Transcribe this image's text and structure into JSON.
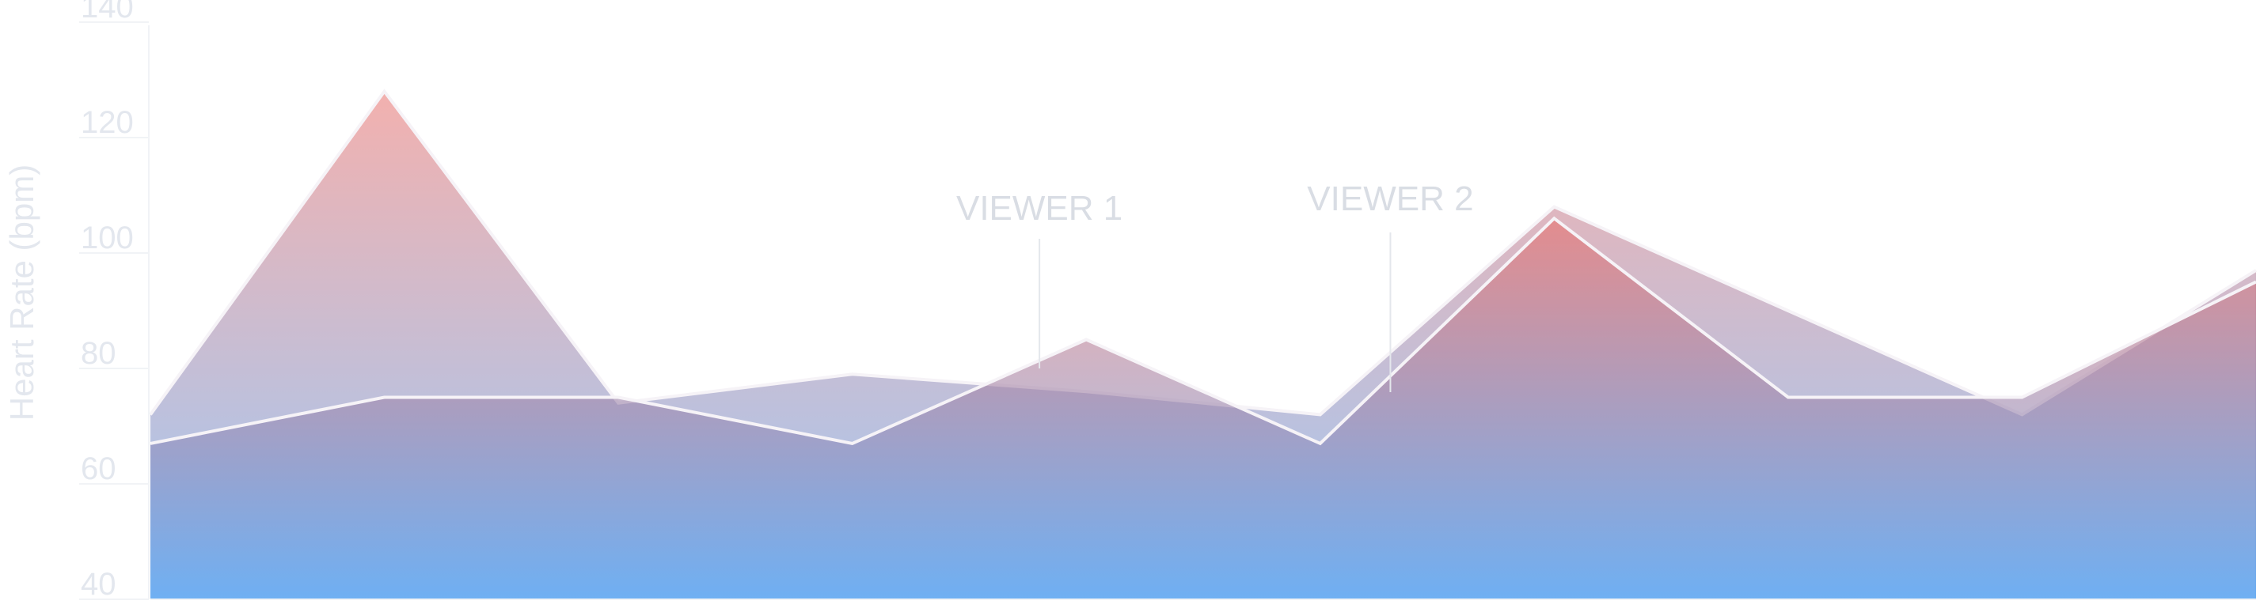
{
  "chart_data": {
    "type": "area",
    "title": "",
    "xlabel": "",
    "ylabel": "Heart Rate (bpm)",
    "ylim": [
      40,
      140
    ],
    "yticks": [
      40,
      60,
      80,
      100,
      120,
      140
    ],
    "x": [
      0,
      1,
      2,
      3,
      4,
      5,
      6,
      7,
      8,
      9
    ],
    "series": [
      {
        "values": [
          72,
          128,
          74,
          79,
          76,
          72,
          108,
          90,
          72,
          97
        ]
      },
      {
        "values": [
          67,
          75,
          75,
          67,
          85,
          67,
          106,
          75,
          75,
          95
        ]
      }
    ],
    "annotations": [
      {
        "label": "VIEWER 1",
        "x": 3.8
      },
      {
        "label": "VIEWER 2",
        "x": 5.3
      }
    ],
    "grid": true,
    "legend": "none",
    "colors": {
      "gradient_top": "#e8706c",
      "gradient_bottom": "#4f9ef0",
      "stroke": "#f6f3f7",
      "text": "#e3e7ee"
    }
  }
}
